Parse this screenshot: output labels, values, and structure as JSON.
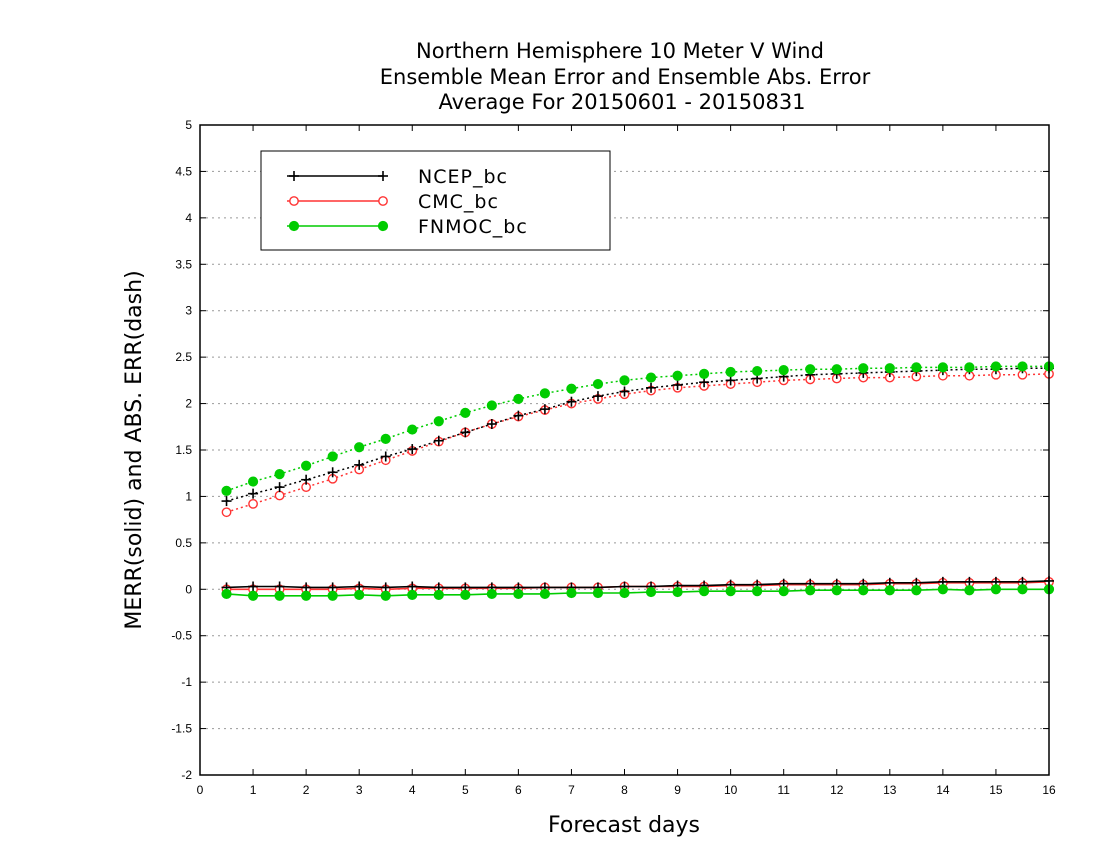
{
  "chart_data": {
    "type": "line",
    "title_lines": [
      "Northern Hemisphere 10 Meter V Wind",
      "Ensemble Mean Error and Ensemble Abs. Error",
      "Average For 20150601 - 20150831"
    ],
    "xlabel": "Forecast days",
    "ylabel": "MERR(solid) and ABS. ERR(dash)",
    "xlim": [
      0,
      16
    ],
    "ylim": [
      -2,
      5
    ],
    "xticks": [
      0,
      1,
      2,
      3,
      4,
      5,
      6,
      7,
      8,
      9,
      10,
      11,
      12,
      13,
      14,
      15,
      16
    ],
    "xtick_labels": [
      "0",
      "1",
      "2",
      "3",
      "4",
      "5",
      "6",
      "7",
      "8",
      "9",
      "10",
      "11",
      "12",
      "13",
      "14",
      "15",
      "16"
    ],
    "yticks": [
      -2,
      -1.5,
      -1,
      -0.5,
      0,
      0.5,
      1,
      1.5,
      2,
      2.5,
      3,
      3.5,
      4,
      4.5,
      5
    ],
    "ytick_labels": [
      "-2",
      "-1.5",
      "-1",
      "-0.5",
      "0",
      "0.5",
      "1",
      "1.5",
      "2",
      "2.5",
      "3",
      "3.5",
      "4",
      "4.5",
      "5"
    ],
    "grid": "horizontal dotted",
    "legend_position": "top-left",
    "x": [
      0.5,
      1,
      1.5,
      2,
      2.5,
      3,
      3.5,
      4,
      4.5,
      5,
      5.5,
      6,
      6.5,
      7,
      7.5,
      8,
      8.5,
      9,
      9.5,
      10,
      10.5,
      11,
      11.5,
      12,
      12.5,
      13,
      13.5,
      14,
      14.5,
      15,
      15.5,
      16
    ],
    "series": [
      {
        "name": "NCEP_bc",
        "color": "#000000",
        "marker": "plus",
        "merr": [
          0.02,
          0.03,
          0.03,
          0.02,
          0.02,
          0.03,
          0.02,
          0.03,
          0.02,
          0.02,
          0.02,
          0.02,
          0.02,
          0.02,
          0.02,
          0.03,
          0.03,
          0.04,
          0.04,
          0.05,
          0.05,
          0.06,
          0.06,
          0.06,
          0.06,
          0.07,
          0.07,
          0.08,
          0.08,
          0.08,
          0.08,
          0.09
        ],
        "abs_err": [
          0.95,
          1.03,
          1.1,
          1.18,
          1.26,
          1.34,
          1.43,
          1.51,
          1.6,
          1.69,
          1.78,
          1.87,
          1.94,
          2.02,
          2.08,
          2.13,
          2.17,
          2.2,
          2.23,
          2.25,
          2.27,
          2.29,
          2.31,
          2.32,
          2.33,
          2.34,
          2.35,
          2.36,
          2.37,
          2.37,
          2.38,
          2.38
        ]
      },
      {
        "name": "CMC_bc",
        "color": "#ff3333",
        "marker": "open-circle",
        "merr": [
          0.0,
          0.0,
          0.0,
          0.0,
          0.0,
          0.01,
          0.0,
          0.01,
          0.01,
          0.01,
          0.01,
          0.01,
          0.02,
          0.02,
          0.02,
          0.03,
          0.03,
          0.03,
          0.03,
          0.04,
          0.04,
          0.05,
          0.05,
          0.05,
          0.05,
          0.06,
          0.06,
          0.07,
          0.07,
          0.07,
          0.07,
          0.08
        ],
        "abs_err": [
          0.83,
          0.92,
          1.01,
          1.1,
          1.19,
          1.29,
          1.39,
          1.49,
          1.59,
          1.69,
          1.78,
          1.86,
          1.93,
          2.0,
          2.05,
          2.1,
          2.14,
          2.17,
          2.19,
          2.21,
          2.23,
          2.25,
          2.26,
          2.27,
          2.28,
          2.28,
          2.29,
          2.3,
          2.3,
          2.31,
          2.31,
          2.32
        ]
      },
      {
        "name": "FNMOC_bc",
        "color": "#00cc00",
        "marker": "filled-circle",
        "merr": [
          -0.05,
          -0.07,
          -0.07,
          -0.07,
          -0.07,
          -0.06,
          -0.07,
          -0.06,
          -0.06,
          -0.06,
          -0.05,
          -0.05,
          -0.05,
          -0.04,
          -0.04,
          -0.04,
          -0.03,
          -0.03,
          -0.02,
          -0.02,
          -0.02,
          -0.02,
          -0.01,
          -0.01,
          -0.01,
          -0.01,
          -0.01,
          0.0,
          -0.01,
          0.0,
          0.0,
          0.0
        ],
        "abs_err": [
          1.06,
          1.16,
          1.24,
          1.33,
          1.43,
          1.53,
          1.62,
          1.72,
          1.81,
          1.9,
          1.98,
          2.05,
          2.11,
          2.16,
          2.21,
          2.25,
          2.28,
          2.3,
          2.32,
          2.34,
          2.35,
          2.36,
          2.37,
          2.37,
          2.38,
          2.38,
          2.39,
          2.39,
          2.39,
          2.4,
          2.4,
          2.4
        ]
      }
    ]
  }
}
